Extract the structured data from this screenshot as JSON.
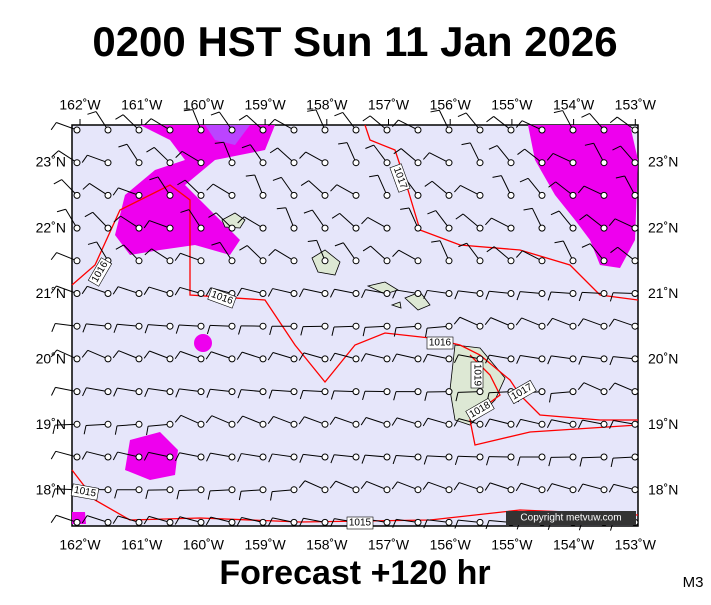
{
  "header": {
    "title": "0200 HST Sun 11 Jan 2026"
  },
  "footer": {
    "subtitle": "Forecast +120 hr",
    "model": "M3"
  },
  "map": {
    "lon_labels": [
      "162˚W",
      "161˚W",
      "160˚W",
      "159˚W",
      "158˚W",
      "157˚W",
      "156˚W",
      "155˚W",
      "154˚W",
      "153˚W"
    ],
    "lat_labels": [
      "23˚N",
      "22˚N",
      "21˚N",
      "20˚N",
      "19˚N",
      "18˚N"
    ],
    "isobar_labels": [
      "1017",
      "1016",
      "1016",
      "1016",
      "1019",
      "1018",
      "1017",
      "1015",
      "1015"
    ],
    "copyright": "Copyright metvuw.com"
  }
}
